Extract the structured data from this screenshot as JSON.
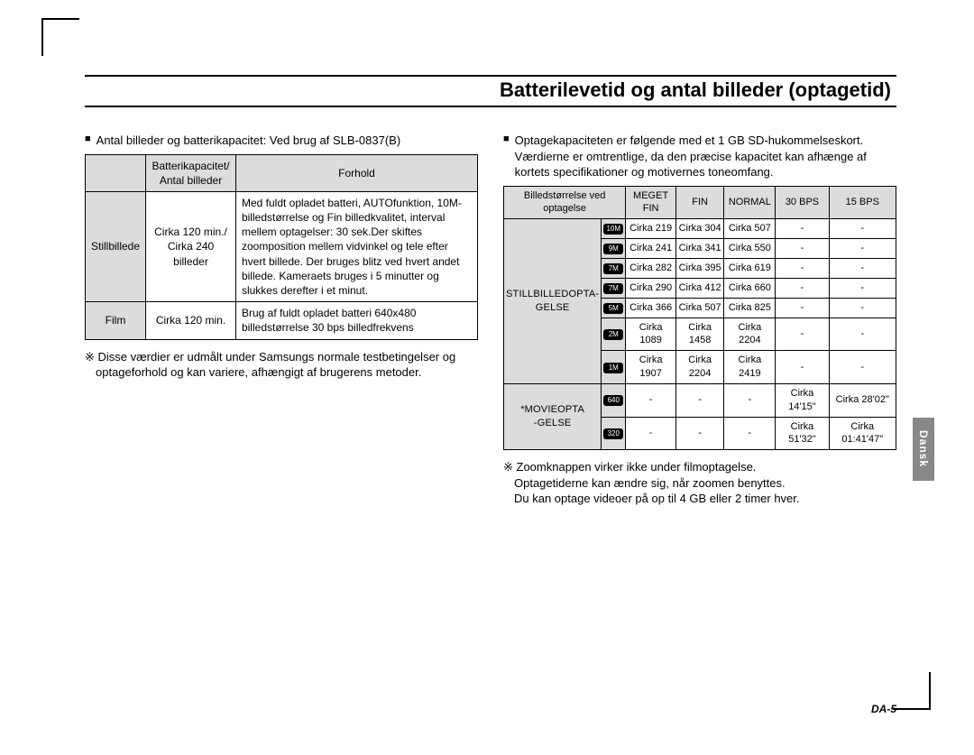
{
  "title": "Batterilevetid og antal billeder (optagetid)",
  "side_tab": "Dansk",
  "page_num": "DA-5",
  "left": {
    "lead": "Antal billeder og batterikapacitet: Ved brug af SLB-0837(B)",
    "t1": {
      "h1": "Batterikapacitet/\nAntal billeder",
      "h2": "Forhold",
      "r1c1": "Stillbillede",
      "r1c2": "Cirka 120 min./\nCirka 240 billeder",
      "r1c3": "Med fuldt opladet batteri, AUTOfunktion, 10M-billedstørrelse og Fin billedkvalitet, interval mellem optagelser: 30 sek.Der skiftes zoomposition mellem vidvinkel og tele efter hvert billede. Der bruges blitz ved hvert andet billede. Kameraets bruges i 5 minutter og slukkes derefter i et minut.",
      "r2c1": "Film",
      "r2c2": "Cirka 120 min.",
      "r2c3": "Brug af fuldt opladet batteri 640x480 billedstørrelse 30 bps billedfrekvens"
    },
    "note": "※ Disse værdier er udmålt under Samsungs normale testbetingelser og optageforhold og kan variere, afhængigt af brugerens metoder."
  },
  "right": {
    "lead": "Optagekapaciteten er følgende med et 1 GB SD-hukommelseskort. Værdierne er omtrentlige, da den præcise kapacitet kan afhænge af kortets specifikationer og motivernes toneomfang.",
    "t2": {
      "h0a": "Billedstørrelse ved",
      "h0b": "optagelse",
      "h1": "MEGET\nFIN",
      "h2": "FIN",
      "h3": "NORMAL",
      "h4": "30 BPS",
      "h5": "15 BPS",
      "group1": "STILLBILLEDOPTA-\nGELSE",
      "group2": "*MOVIEOPTA\n-GELSE",
      "badges": [
        "10M",
        "9M",
        "7M",
        "7M",
        "5M",
        "2M",
        "1M",
        "640",
        "320"
      ],
      "rows": [
        [
          "Cirka 219",
          "Cirka 304",
          "Cirka 507",
          "-",
          "-"
        ],
        [
          "Cirka 241",
          "Cirka 341",
          "Cirka 550",
          "-",
          "-"
        ],
        [
          "Cirka 282",
          "Cirka 395",
          "Cirka 619",
          "-",
          "-"
        ],
        [
          "Cirka 290",
          "Cirka 412",
          "Cirka 660",
          "-",
          "-"
        ],
        [
          "Cirka 366",
          "Cirka 507",
          "Cirka 825",
          "-",
          "-"
        ],
        [
          "Cirka 1089",
          "Cirka 1458",
          "Cirka 2204",
          "-",
          "-"
        ],
        [
          "Cirka 1907",
          "Cirka 2204",
          "Cirka 2419",
          "-",
          "-"
        ],
        [
          "-",
          "-",
          "-",
          "Cirka 14'15\"",
          "Cirka 28'02\""
        ],
        [
          "-",
          "-",
          "-",
          "Cirka 51'32\"",
          "Cirka 01:41'47\""
        ]
      ]
    },
    "note": "※ Zoomknappen virker ikke under filmoptagelse.\nOptagetiderne kan ændre sig, når zoomen benyttes.\nDu kan optage videoer på op til 4 GB eller 2 timer hver."
  }
}
